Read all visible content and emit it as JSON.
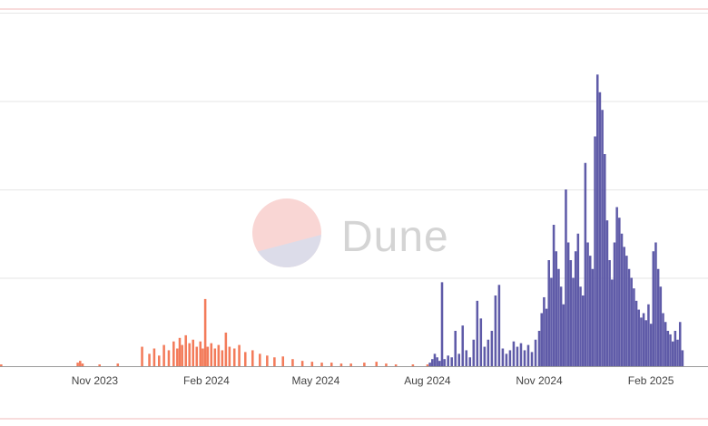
{
  "chart_data": {
    "type": "bar",
    "title": "",
    "xlabel": "",
    "ylabel": "",
    "x_range": [
      "2023-08-15",
      "2025-03-20"
    ],
    "x_tick_labels": [
      "Nov 2023",
      "Feb 2024",
      "May 2024",
      "Aug 2024",
      "Nov 2024",
      "Feb 2025"
    ],
    "ylim": [
      0,
      400
    ],
    "grid": true,
    "colors": {
      "series_a": "#f37b5a",
      "series_b": "#5f5ba8",
      "gridline": "#e6e6e6",
      "frame_line": "#f2b8b8"
    },
    "series": [
      {
        "color": "#f37b5a",
        "points": [
          [
            "2023-08-16",
            2
          ],
          [
            "2023-10-18",
            4
          ],
          [
            "2023-10-20",
            6
          ],
          [
            "2023-10-22",
            3
          ],
          [
            "2023-11-05",
            2
          ],
          [
            "2023-11-20",
            3
          ],
          [
            "2023-12-10",
            22
          ],
          [
            "2023-12-16",
            14
          ],
          [
            "2023-12-20",
            20
          ],
          [
            "2023-12-24",
            12
          ],
          [
            "2023-12-28",
            24
          ],
          [
            "2024-01-01",
            18
          ],
          [
            "2024-01-05",
            28
          ],
          [
            "2024-01-08",
            20
          ],
          [
            "2024-01-10",
            32
          ],
          [
            "2024-01-12",
            24
          ],
          [
            "2024-01-15",
            35
          ],
          [
            "2024-01-18",
            26
          ],
          [
            "2024-01-21",
            30
          ],
          [
            "2024-01-24",
            22
          ],
          [
            "2024-01-27",
            28
          ],
          [
            "2024-01-29",
            20
          ],
          [
            "2024-01-31",
            76
          ],
          [
            "2024-02-02",
            22
          ],
          [
            "2024-02-05",
            26
          ],
          [
            "2024-02-08",
            20
          ],
          [
            "2024-02-11",
            24
          ],
          [
            "2024-02-14",
            18
          ],
          [
            "2024-02-17",
            38
          ],
          [
            "2024-02-20",
            22
          ],
          [
            "2024-02-24",
            20
          ],
          [
            "2024-02-28",
            24
          ],
          [
            "2024-03-04",
            16
          ],
          [
            "2024-03-10",
            18
          ],
          [
            "2024-03-16",
            14
          ],
          [
            "2024-03-22",
            12
          ],
          [
            "2024-03-28",
            10
          ],
          [
            "2024-04-04",
            11
          ],
          [
            "2024-04-12",
            8
          ],
          [
            "2024-04-20",
            6
          ],
          [
            "2024-04-28",
            5
          ],
          [
            "2024-05-06",
            4
          ],
          [
            "2024-05-14",
            4
          ],
          [
            "2024-05-22",
            3
          ],
          [
            "2024-05-30",
            3
          ],
          [
            "2024-06-10",
            4
          ],
          [
            "2024-06-20",
            5
          ],
          [
            "2024-06-28",
            3
          ],
          [
            "2024-07-06",
            2
          ],
          [
            "2024-07-20",
            2
          ],
          [
            "2024-08-01",
            2
          ]
        ]
      },
      {
        "color": "#5f5ba8",
        "points": [
          [
            "2024-08-03",
            4
          ],
          [
            "2024-08-05",
            8
          ],
          [
            "2024-08-07",
            14
          ],
          [
            "2024-08-09",
            10
          ],
          [
            "2024-08-11",
            6
          ],
          [
            "2024-08-13",
            95
          ],
          [
            "2024-08-15",
            8
          ],
          [
            "2024-08-18",
            12
          ],
          [
            "2024-08-21",
            10
          ],
          [
            "2024-08-24",
            40
          ],
          [
            "2024-08-27",
            14
          ],
          [
            "2024-08-30",
            46
          ],
          [
            "2024-09-02",
            18
          ],
          [
            "2024-09-05",
            10
          ],
          [
            "2024-09-08",
            30
          ],
          [
            "2024-09-11",
            74
          ],
          [
            "2024-09-14",
            54
          ],
          [
            "2024-09-17",
            22
          ],
          [
            "2024-09-20",
            30
          ],
          [
            "2024-09-23",
            40
          ],
          [
            "2024-09-26",
            80
          ],
          [
            "2024-09-29",
            92
          ],
          [
            "2024-10-02",
            20
          ],
          [
            "2024-10-05",
            14
          ],
          [
            "2024-10-08",
            18
          ],
          [
            "2024-10-11",
            28
          ],
          [
            "2024-10-14",
            22
          ],
          [
            "2024-10-17",
            26
          ],
          [
            "2024-10-20",
            18
          ],
          [
            "2024-10-23",
            24
          ],
          [
            "2024-10-26",
            16
          ],
          [
            "2024-10-29",
            30
          ],
          [
            "2024-11-01",
            40
          ],
          [
            "2024-11-03",
            60
          ],
          [
            "2024-11-05",
            78
          ],
          [
            "2024-11-07",
            65
          ],
          [
            "2024-11-09",
            120
          ],
          [
            "2024-11-11",
            100
          ],
          [
            "2024-11-13",
            160
          ],
          [
            "2024-11-15",
            130
          ],
          [
            "2024-11-17",
            110
          ],
          [
            "2024-11-19",
            90
          ],
          [
            "2024-11-21",
            70
          ],
          [
            "2024-11-23",
            200
          ],
          [
            "2024-11-25",
            140
          ],
          [
            "2024-11-27",
            120
          ],
          [
            "2024-11-29",
            100
          ],
          [
            "2024-12-01",
            130
          ],
          [
            "2024-12-03",
            150
          ],
          [
            "2024-12-05",
            90
          ],
          [
            "2024-12-07",
            80
          ],
          [
            "2024-12-09",
            230
          ],
          [
            "2024-12-11",
            140
          ],
          [
            "2024-12-13",
            125
          ],
          [
            "2024-12-15",
            110
          ],
          [
            "2024-12-17",
            260
          ],
          [
            "2024-12-19",
            330
          ],
          [
            "2024-12-21",
            310
          ],
          [
            "2024-12-23",
            290
          ],
          [
            "2024-12-25",
            240
          ],
          [
            "2024-12-27",
            165
          ],
          [
            "2024-12-29",
            120
          ],
          [
            "2024-12-31",
            98
          ],
          [
            "2025-01-02",
            140
          ],
          [
            "2025-01-04",
            180
          ],
          [
            "2025-01-06",
            168
          ],
          [
            "2025-01-08",
            150
          ],
          [
            "2025-01-10",
            135
          ],
          [
            "2025-01-12",
            125
          ],
          [
            "2025-01-14",
            110
          ],
          [
            "2025-01-16",
            100
          ],
          [
            "2025-01-18",
            88
          ],
          [
            "2025-01-20",
            74
          ],
          [
            "2025-01-22",
            64
          ],
          [
            "2025-01-24",
            55
          ],
          [
            "2025-01-26",
            60
          ],
          [
            "2025-01-28",
            52
          ],
          [
            "2025-01-30",
            70
          ],
          [
            "2025-02-01",
            48
          ],
          [
            "2025-02-03",
            130
          ],
          [
            "2025-02-05",
            140
          ],
          [
            "2025-02-07",
            110
          ],
          [
            "2025-02-09",
            90
          ],
          [
            "2025-02-11",
            60
          ],
          [
            "2025-02-13",
            50
          ],
          [
            "2025-02-15",
            40
          ],
          [
            "2025-02-17",
            36
          ],
          [
            "2025-02-19",
            28
          ],
          [
            "2025-02-21",
            40
          ],
          [
            "2025-02-23",
            30
          ],
          [
            "2025-02-25",
            50
          ],
          [
            "2025-02-27",
            18
          ]
        ]
      }
    ]
  },
  "watermark": {
    "text": "Dune",
    "colors": {
      "top": "#f9d6d4",
      "bottom": "#dcdce9"
    }
  }
}
